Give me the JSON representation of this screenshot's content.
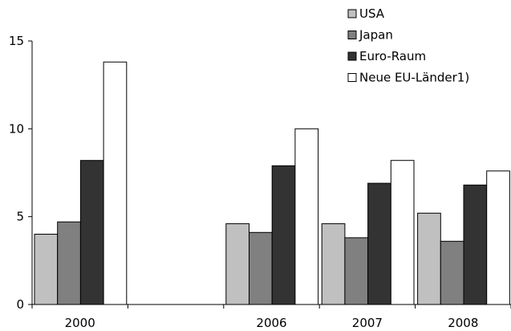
{
  "chart_data": {
    "type": "bar",
    "categories": [
      "2000",
      "",
      "2006",
      "2007",
      "2008"
    ],
    "series": [
      {
        "name": "USA",
        "values": [
          4.0,
          null,
          4.6,
          4.6,
          5.2
        ],
        "color": "#c0c0c0"
      },
      {
        "name": "Japan",
        "values": [
          4.7,
          null,
          4.1,
          3.8,
          3.6
        ],
        "color": "#808080"
      },
      {
        "name": "Euro-Raum",
        "values": [
          8.2,
          null,
          7.9,
          6.9,
          6.8
        ],
        "color": "#333333"
      },
      {
        "name": "Neue EU-Länder1)",
        "values": [
          13.8,
          null,
          10.0,
          8.2,
          7.6
        ],
        "color": "#ffffff"
      }
    ],
    "y_ticks": [
      "0",
      "5",
      "10",
      "15"
    ],
    "ylim": [
      0,
      15
    ],
    "grid": false,
    "legend_position": "top-right"
  }
}
